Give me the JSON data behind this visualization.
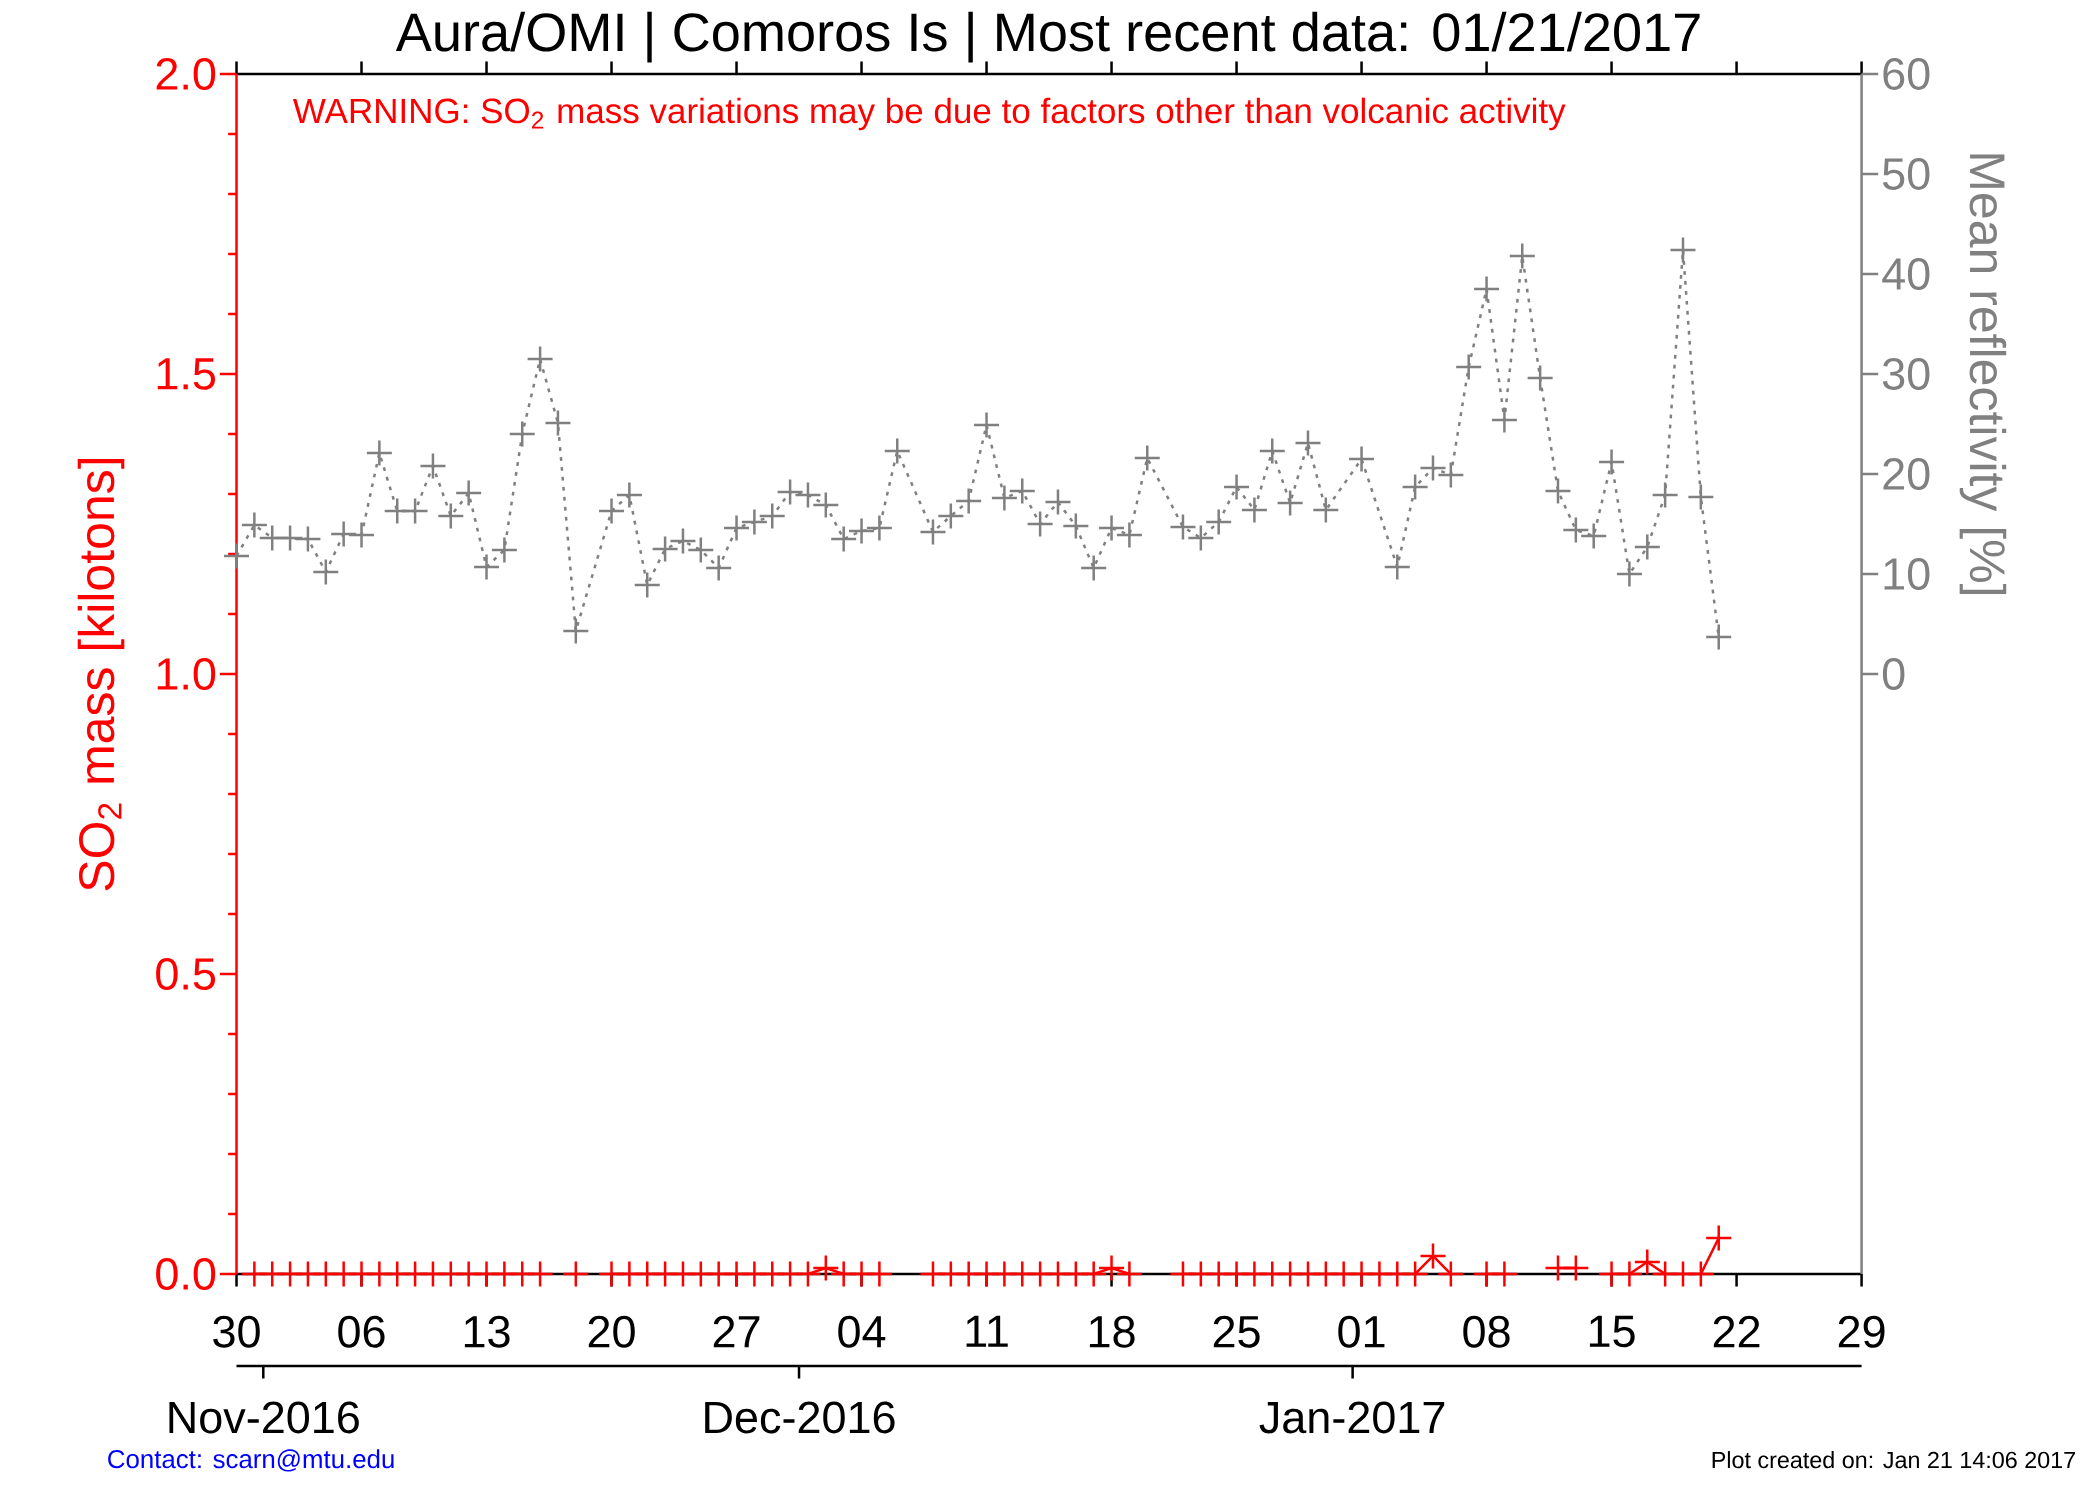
{
  "chart_data": {
    "type": "line",
    "title": "Aura/OMI | Comoros Is | Most recent data: 01/21/2017",
    "ylabel": "SO$_{2}$ mass [kilotons]",
    "y2label": "Mean reflectivity [%]",
    "annotations": [
      "WARNING: SO$_{2}$ mass variations may be due to factors other than volcanic activity",
      "Contact: scarn@mtu.edu",
      "Plot created on: Jan 21 14:06 2017"
    ],
    "xlim": [
      "2016-10-30",
      "2017-01-29"
    ],
    "xticks": [
      {
        "value": "2016-10-30",
        "label": "30"
      },
      {
        "value": "2016-11-06",
        "label": "06"
      },
      {
        "value": "2016-11-13",
        "label": "13"
      },
      {
        "value": "2016-11-20",
        "label": "20"
      },
      {
        "value": "2016-11-27",
        "label": "27"
      },
      {
        "value": "2016-12-04",
        "label": "04"
      },
      {
        "value": "2016-12-11",
        "label": "11"
      },
      {
        "value": "2016-12-18",
        "label": "18"
      },
      {
        "value": "2016-12-25",
        "label": "25"
      },
      {
        "value": "2017-01-01",
        "label": "01"
      },
      {
        "value": "2017-01-08",
        "label": "08"
      },
      {
        "value": "2017-01-15",
        "label": "15"
      },
      {
        "value": "2017-01-22",
        "label": "22"
      },
      {
        "value": "2017-01-29",
        "label": "29"
      }
    ],
    "x2lim": [
      "2016-10-30T12:00",
      "2017-01-29T12:00"
    ],
    "x2ticks": [
      {
        "value": "2016-11-01",
        "label": "Nov-2016"
      },
      {
        "value": "2016-12-01",
        "label": "Dec-2016"
      },
      {
        "value": "2017-01-01",
        "label": "Jan-2017"
      }
    ],
    "ylim": [
      0,
      2
    ],
    "yticks": [
      {
        "value": 0,
        "label": "0.0"
      },
      {
        "value": 0.1,
        "label": null
      },
      {
        "value": 0.2,
        "label": null
      },
      {
        "value": 0.3,
        "label": null
      },
      {
        "value": 0.4,
        "label": null
      },
      0.5,
      {
        "value": 0.6,
        "label": null
      },
      {
        "value": 0.7,
        "label": null
      },
      {
        "value": 0.8,
        "label": null
      },
      {
        "value": 0.9,
        "label": null
      },
      {
        "value": 1,
        "label": "1.0"
      },
      {
        "value": 1.1,
        "label": null
      },
      {
        "value": 1.2,
        "label": null
      },
      {
        "value": 1.3,
        "label": null
      },
      {
        "value": 1.4,
        "label": null
      },
      1.5,
      {
        "value": 1.6,
        "label": null
      },
      {
        "value": 1.7,
        "label": null
      },
      {
        "value": 1.8,
        "label": null
      },
      {
        "value": 1.9,
        "label": null
      },
      {
        "value": 2,
        "label": "2.0"
      }
    ],
    "y2lim": [
      -60,
      60
    ],
    "y2ticks": [
      0,
      10,
      20,
      30,
      40,
      50,
      60
    ],
    "marker": "cross",
    "series": [
      {
        "color": "#ff0000",
        "line_style": "solid",
        "x": [
          "2016-10-31",
          "2016-11-01",
          "2016-11-02",
          "2016-11-03",
          "2016-11-04",
          "2016-11-05",
          "2016-11-06",
          "2016-11-07",
          "2016-11-08",
          "2016-11-09",
          "2016-11-10",
          "2016-11-11",
          "2016-11-12",
          "2016-11-13",
          "2016-11-14",
          "2016-11-15",
          "2016-11-16",
          "2016-11-17",
          "2016-11-18",
          "2016-11-19",
          "2016-11-20",
          "2016-11-21",
          "2016-11-22",
          "2016-11-23",
          "2016-11-24",
          "2016-11-25",
          "2016-11-26",
          "2016-11-27",
          "2016-11-28",
          "2016-11-29",
          "2016-11-30",
          "2016-12-01",
          "2016-12-02",
          "2016-12-03",
          "2016-12-04",
          "2016-12-05",
          "2016-12-06",
          "2016-12-07",
          "2016-12-08",
          "2016-12-09",
          "2016-12-10",
          "2016-12-11",
          "2016-12-12",
          "2016-12-13",
          "2016-12-14",
          "2016-12-15",
          "2016-12-16",
          "2016-12-17",
          "2016-12-18",
          "2016-12-19",
          "2016-12-20",
          "2016-12-21",
          "2016-12-22",
          "2016-12-23",
          "2016-12-24",
          "2016-12-25",
          "2016-12-26",
          "2016-12-27",
          "2016-12-28",
          "2016-12-29",
          "2016-12-30",
          "2016-12-31",
          "2017-01-01",
          "2017-01-02",
          "2017-01-03",
          "2017-01-04",
          "2017-01-05",
          "2017-01-06",
          "2017-01-07",
          "2017-01-08",
          "2017-01-09",
          "2017-01-10",
          "2017-01-11",
          "2017-01-12",
          "2017-01-13",
          "2017-01-14",
          "2017-01-15",
          "2017-01-16",
          "2017-01-17",
          "2017-01-18",
          "2017-01-19",
          "2017-01-20",
          "2017-01-21"
        ],
        "values": [
          0,
          0,
          0,
          0,
          0,
          0,
          0,
          0,
          0,
          0,
          0,
          0,
          0,
          0,
          0,
          0,
          0,
          null,
          0,
          null,
          0,
          0,
          0,
          0,
          0,
          0,
          0,
          0,
          0,
          0,
          0,
          0,
          0.01,
          0,
          0,
          0,
          null,
          null,
          0,
          0,
          0,
          0,
          0,
          0,
          0,
          0,
          0,
          0,
          0.01,
          0,
          null,
          null,
          0,
          0,
          0,
          0,
          0,
          0,
          0,
          0,
          0,
          0,
          0,
          0,
          0,
          0,
          0.03,
          0,
          null,
          0,
          0,
          null,
          null,
          0.01,
          0.01,
          null,
          0,
          0,
          0.02,
          0,
          0,
          0,
          0.06
        ]
      },
      {
        "color": "#808080",
        "line_style": "dotted",
        "axis": "y2",
        "x": [
          "2016-10-30",
          "2016-10-31",
          "2016-11-01",
          "2016-11-02",
          "2016-11-03",
          "2016-11-04",
          "2016-11-05",
          "2016-11-06",
          "2016-11-07",
          "2016-11-08",
          "2016-11-09",
          "2016-11-10",
          "2016-11-11",
          "2016-11-12",
          "2016-11-13",
          "2016-11-14",
          "2016-11-15",
          "2016-11-16",
          "2016-11-17",
          "2016-11-18",
          "2016-11-20",
          "2016-11-21",
          "2016-11-22",
          "2016-11-23",
          "2016-11-24",
          "2016-11-25",
          "2016-11-26",
          "2016-11-27",
          "2016-11-28",
          "2016-11-29",
          "2016-11-30",
          "2016-12-01",
          "2016-12-02",
          "2016-12-03",
          "2016-12-04",
          "2016-12-05",
          "2016-12-06",
          "2016-12-08",
          "2016-12-09",
          "2016-12-10",
          "2016-12-11",
          "2016-12-12",
          "2016-12-13",
          "2016-12-14",
          "2016-12-15",
          "2016-12-16",
          "2016-12-17",
          "2016-12-18",
          "2016-12-19",
          "2016-12-20",
          "2016-12-22",
          "2016-12-23",
          "2016-12-24",
          "2016-12-25",
          "2016-12-26",
          "2016-12-27",
          "2016-12-28",
          "2016-12-29",
          "2016-12-30",
          "2017-01-01",
          "2017-01-03",
          "2017-01-04",
          "2017-01-05",
          "2017-01-06",
          "2017-01-07",
          "2017-01-08",
          "2017-01-09",
          "2017-01-10",
          "2017-01-11",
          "2017-01-12",
          "2017-01-13",
          "2017-01-14",
          "2017-01-15",
          "2017-01-16",
          "2017-01-17",
          "2017-01-18",
          "2017-01-19",
          "2017-01-20",
          "2017-01-21"
        ],
        "values": [
          11.8,
          14.9,
          13.6,
          13.6,
          13.5,
          10.2,
          14.0,
          13.9,
          22.1,
          16.3,
          16.3,
          20.8,
          15.8,
          18.1,
          10.7,
          12.4,
          24.0,
          31.5,
          25.1,
          4.3,
          16.3,
          17.9,
          8.9,
          12.5,
          13.3,
          12.4,
          10.6,
          14.6,
          15.2,
          15.8,
          18.2,
          17.9,
          16.9,
          13.5,
          14.3,
          14.6,
          22.3,
          14.2,
          15.8,
          17.3,
          24.9,
          17.6,
          18.3,
          15.0,
          17.2,
          14.8,
          10.6,
          14.6,
          13.9,
          21.6,
          14.7,
          13.6,
          15.2,
          18.7,
          16.4,
          22.3,
          17.1,
          23.1,
          16.4,
          21.5,
          10.7,
          18.7,
          20.6,
          19.9,
          30.7,
          38.5,
          25.4,
          41.8,
          29.6,
          18.3,
          14.4,
          13.8,
          21.2,
          10.0,
          12.7,
          17.9,
          42.4,
          17.7,
          3.7
        ]
      }
    ]
  }
}
